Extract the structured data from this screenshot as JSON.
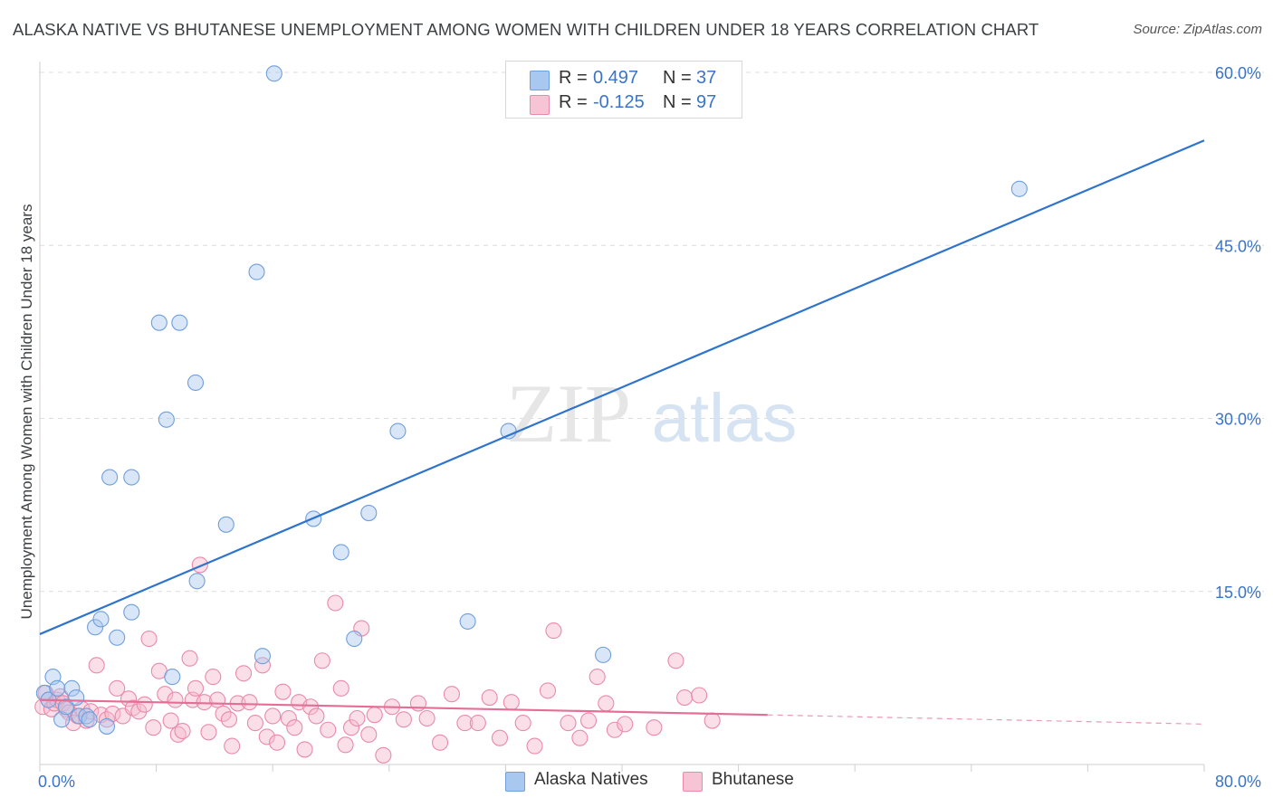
{
  "title": "ALASKA NATIVE VS BHUTANESE UNEMPLOYMENT AMONG WOMEN WITH CHILDREN UNDER 18 YEARS CORRELATION CHART",
  "source": "Source: ZipAtlas.com",
  "watermark": {
    "zip": "ZIP",
    "atlas": "atlas"
  },
  "legend_top": {
    "row1": {
      "r_label": "R =",
      "r_value": "0.497",
      "n_label": "N =",
      "n_value": "37"
    },
    "row2": {
      "r_label": "R =",
      "r_value": "-0.125",
      "n_label": "N =",
      "n_value": "97"
    }
  },
  "legend_bottom": {
    "series1": "Alaska Natives",
    "series2": "Bhutanese"
  },
  "colors": {
    "blue_fill": "#a9c8f0",
    "blue_stroke": "#6f9fdc",
    "blue_line": "#2f74cc",
    "pink_fill": "#f6b7cb",
    "pink_stroke": "#e98aa9",
    "pink_line": "#e36e96",
    "axis_label": "#3a74c8",
    "grid": "#dcdcdc"
  },
  "chart_data": {
    "type": "scatter",
    "title": "ALASKA NATIVE VS BHUTANESE UNEMPLOYMENT AMONG WOMEN WITH CHILDREN UNDER 18 YEARS CORRELATION CHART",
    "xlabel": "",
    "ylabel": "Unemployment Among Women with Children Under 18 years",
    "xlim": [
      0,
      80
    ],
    "ylim": [
      0,
      63
    ],
    "x_tick_labels": [
      "0.0%",
      "80.0%"
    ],
    "y_ticks": [
      15,
      30,
      45,
      60
    ],
    "y_tick_labels": [
      "15.0%",
      "30.0%",
      "45.0%",
      "60.0%"
    ],
    "grid": true,
    "legend_placement": "top-center",
    "series": [
      {
        "name": "Alaska Natives",
        "r": 0.497,
        "n": 37,
        "trend": {
          "x": [
            0,
            80
          ],
          "y": [
            11.3,
            54.1
          ]
        },
        "points": [
          [
            0.3,
            6.2
          ],
          [
            0.6,
            5.6
          ],
          [
            0.9,
            7.6
          ],
          [
            1.2,
            6.6
          ],
          [
            1.5,
            3.9
          ],
          [
            1.8,
            5.0
          ],
          [
            2.2,
            6.6
          ],
          [
            2.5,
            5.8
          ],
          [
            2.7,
            4.2
          ],
          [
            3.2,
            4.2
          ],
          [
            3.4,
            3.9
          ],
          [
            3.8,
            11.9
          ],
          [
            4.2,
            12.6
          ],
          [
            4.6,
            3.3
          ],
          [
            4.8,
            24.9
          ],
          [
            5.3,
            11.0
          ],
          [
            6.3,
            24.9
          ],
          [
            6.3,
            13.2
          ],
          [
            8.2,
            38.3
          ],
          [
            8.7,
            29.9
          ],
          [
            9.1,
            7.6
          ],
          [
            9.6,
            38.3
          ],
          [
            10.7,
            33.1
          ],
          [
            10.8,
            15.9
          ],
          [
            12.8,
            20.8
          ],
          [
            14.9,
            42.7
          ],
          [
            15.3,
            9.4
          ],
          [
            16.1,
            59.9
          ],
          [
            18.8,
            21.3
          ],
          [
            20.7,
            18.4
          ],
          [
            21.6,
            10.9
          ],
          [
            22.6,
            21.8
          ],
          [
            24.6,
            28.9
          ],
          [
            29.4,
            12.4
          ],
          [
            32.2,
            28.9
          ],
          [
            38.7,
            9.5
          ],
          [
            67.3,
            49.9
          ]
        ]
      },
      {
        "name": "Bhutanese",
        "r": -0.125,
        "n": 97,
        "trend": {
          "x": [
            0,
            50
          ],
          "y": [
            5.6,
            4.3
          ]
        },
        "trend_dashed": {
          "x": [
            50,
            80
          ],
          "y": [
            4.3,
            3.5
          ]
        },
        "points": [
          [
            0.2,
            5.0
          ],
          [
            0.4,
            6.2
          ],
          [
            0.6,
            5.6
          ],
          [
            0.8,
            4.8
          ],
          [
            1.0,
            5.3
          ],
          [
            1.2,
            5.6
          ],
          [
            1.4,
            5.9
          ],
          [
            1.6,
            5.3
          ],
          [
            1.8,
            4.8
          ],
          [
            2.0,
            4.5
          ],
          [
            2.3,
            3.6
          ],
          [
            2.6,
            4.2
          ],
          [
            2.9,
            4.8
          ],
          [
            3.2,
            3.8
          ],
          [
            3.5,
            4.6
          ],
          [
            3.9,
            8.6
          ],
          [
            4.2,
            4.3
          ],
          [
            4.6,
            3.9
          ],
          [
            5.0,
            4.4
          ],
          [
            5.3,
            6.6
          ],
          [
            5.7,
            4.2
          ],
          [
            6.1,
            5.7
          ],
          [
            6.4,
            4.9
          ],
          [
            6.8,
            4.6
          ],
          [
            7.2,
            5.2
          ],
          [
            7.5,
            10.9
          ],
          [
            7.8,
            3.2
          ],
          [
            8.2,
            8.1
          ],
          [
            8.6,
            6.1
          ],
          [
            9.0,
            3.8
          ],
          [
            9.3,
            5.6
          ],
          [
            9.5,
            2.6
          ],
          [
            9.8,
            2.9
          ],
          [
            10.3,
            9.2
          ],
          [
            10.5,
            5.6
          ],
          [
            10.7,
            6.6
          ],
          [
            11.0,
            17.3
          ],
          [
            11.3,
            5.4
          ],
          [
            11.6,
            2.8
          ],
          [
            11.9,
            7.6
          ],
          [
            12.2,
            5.6
          ],
          [
            12.6,
            4.4
          ],
          [
            13.0,
            3.9
          ],
          [
            13.2,
            1.6
          ],
          [
            13.6,
            5.3
          ],
          [
            14.0,
            7.9
          ],
          [
            14.4,
            5.4
          ],
          [
            14.8,
            3.6
          ],
          [
            15.3,
            8.6
          ],
          [
            15.6,
            2.4
          ],
          [
            16.0,
            4.2
          ],
          [
            16.3,
            1.9
          ],
          [
            16.7,
            6.3
          ],
          [
            17.1,
            4.0
          ],
          [
            17.5,
            3.2
          ],
          [
            17.8,
            5.4
          ],
          [
            18.2,
            1.3
          ],
          [
            18.6,
            5.0
          ],
          [
            19.0,
            4.2
          ],
          [
            19.4,
            9.0
          ],
          [
            19.8,
            3.0
          ],
          [
            20.3,
            14.0
          ],
          [
            20.7,
            6.6
          ],
          [
            21.0,
            1.7
          ],
          [
            21.4,
            3.2
          ],
          [
            21.8,
            4.0
          ],
          [
            22.1,
            11.8
          ],
          [
            22.6,
            2.6
          ],
          [
            23.0,
            4.3
          ],
          [
            23.6,
            0.8
          ],
          [
            24.2,
            5.0
          ],
          [
            25.0,
            3.9
          ],
          [
            26.0,
            5.3
          ],
          [
            26.6,
            4.0
          ],
          [
            27.5,
            1.9
          ],
          [
            28.3,
            6.1
          ],
          [
            29.2,
            3.6
          ],
          [
            30.1,
            3.6
          ],
          [
            30.9,
            5.8
          ],
          [
            31.6,
            2.3
          ],
          [
            32.4,
            5.4
          ],
          [
            33.2,
            3.6
          ],
          [
            34.0,
            1.6
          ],
          [
            34.9,
            6.4
          ],
          [
            35.3,
            11.6
          ],
          [
            36.3,
            3.6
          ],
          [
            37.1,
            2.3
          ],
          [
            37.7,
            3.8
          ],
          [
            38.3,
            7.6
          ],
          [
            38.9,
            5.3
          ],
          [
            39.5,
            3.0
          ],
          [
            40.2,
            3.5
          ],
          [
            42.2,
            3.2
          ],
          [
            43.7,
            9.0
          ],
          [
            44.3,
            5.8
          ],
          [
            45.3,
            6.0
          ],
          [
            46.2,
            3.8
          ]
        ]
      }
    ]
  }
}
